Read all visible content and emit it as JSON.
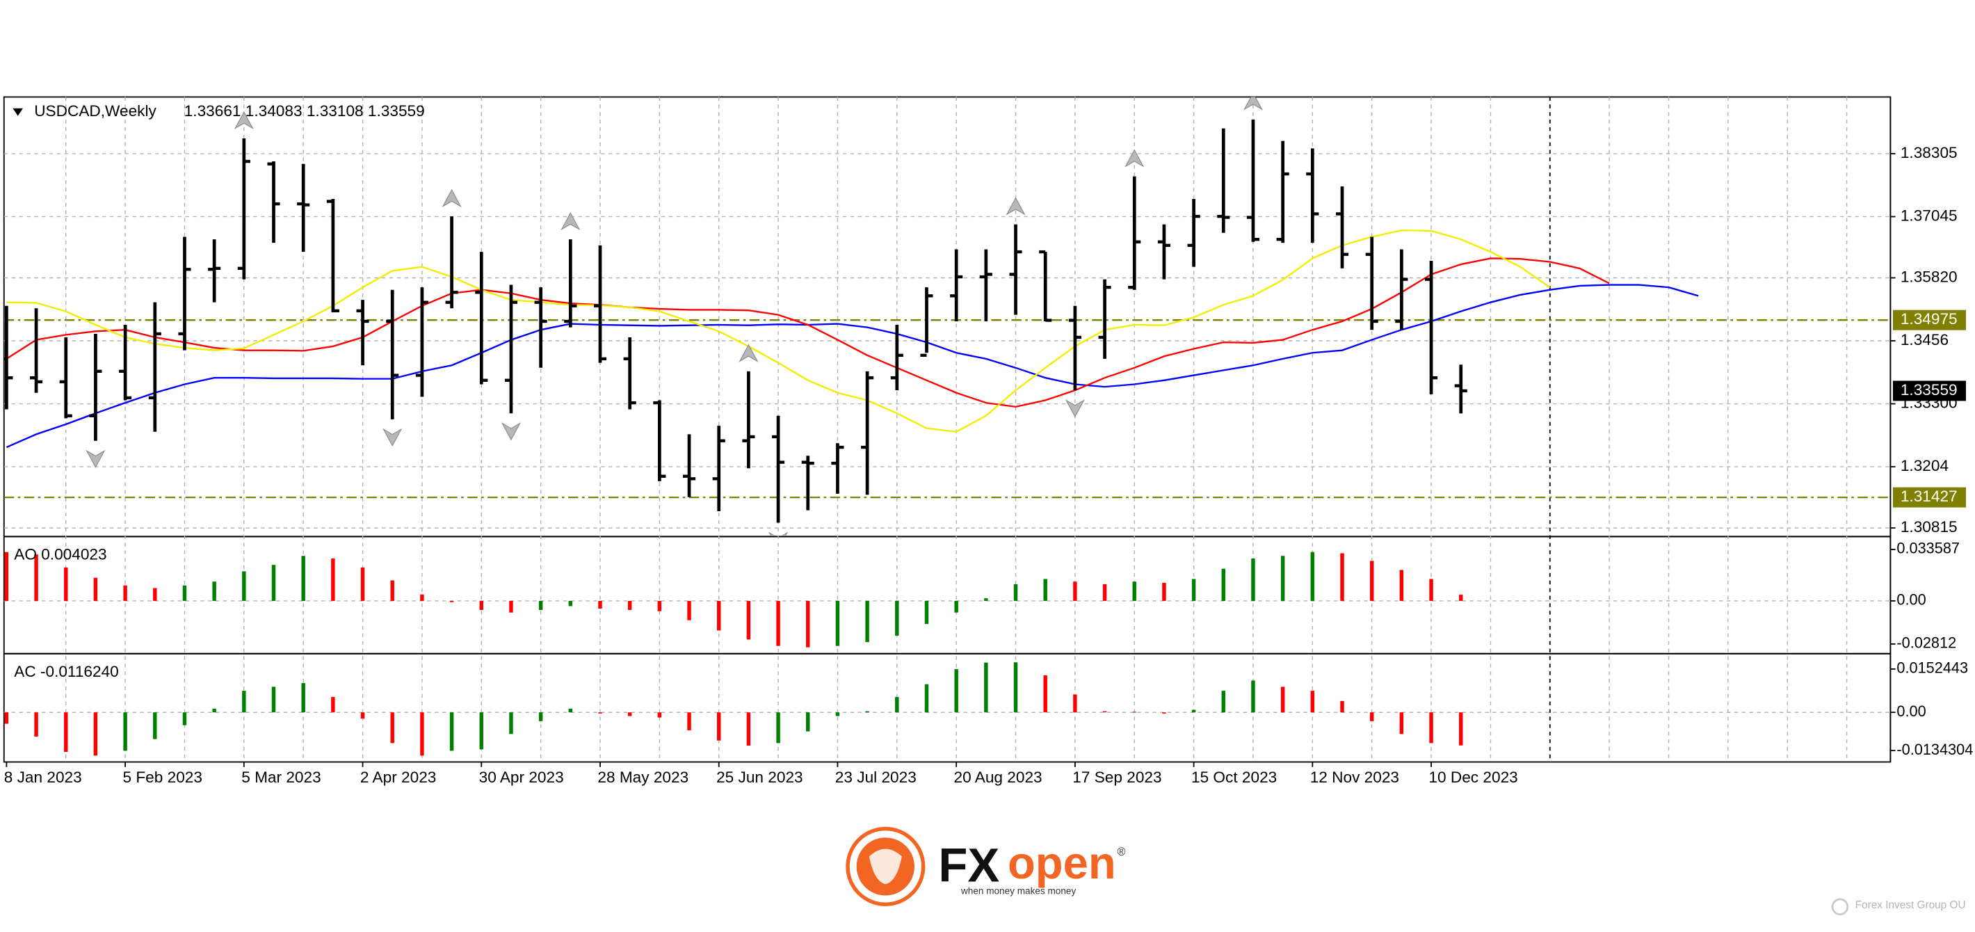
{
  "chart_data": {
    "type": "ohlc",
    "symbol": "USDCAD,Weekly",
    "ohlc_text": "1.33661 1.34083 1.33108 1.33559",
    "categories": [
      "8 Jan 2023",
      null,
      null,
      null,
      "5 Feb 2023",
      null,
      null,
      null,
      "5 Mar 2023",
      null,
      null,
      null,
      "2 Apr 2023",
      null,
      null,
      null,
      "30 Apr 2023",
      null,
      null,
      null,
      "28 May 2023",
      null,
      null,
      null,
      "25 Jun 2023",
      null,
      null,
      null,
      "23 Jul 2023",
      null,
      null,
      null,
      "20 Aug 2023",
      null,
      null,
      null,
      "17 Sep 2023",
      null,
      null,
      null,
      "15 Oct 2023",
      null,
      null,
      null,
      "12 Nov 2023",
      null,
      null,
      null,
      "10 Dec 2023",
      null,
      null,
      null,
      null,
      null,
      null,
      null,
      null,
      null
    ],
    "open": [
      1.342,
      1.3382,
      1.3374,
      1.3306,
      1.3395,
      1.3342,
      1.347,
      1.3599,
      1.3601,
      1.381,
      1.373,
      1.3735,
      1.3516,
      1.3495,
      1.3387,
      1.3533,
      1.3553,
      1.3377,
      1.3533,
      1.3495,
      1.3526,
      1.342,
      1.3332,
      1.3185,
      1.318,
      1.3256,
      1.3264,
      1.3213,
      1.3211,
      1.3243,
      1.3382,
      1.3427,
      1.3546,
      1.3584,
      1.3589,
      1.3634,
      1.3497,
      1.3463,
      1.3563,
      1.3654,
      1.3647,
      1.3705,
      1.3703,
      1.3659,
      1.379,
      1.371,
      1.3629,
      1.3495,
      1.3579,
      1.33661,
      null,
      null,
      null,
      null,
      null,
      null,
      null,
      null
    ],
    "high": [
      1.3526,
      1.3521,
      1.3463,
      1.347,
      1.3488,
      1.3533,
      1.3664,
      1.3659,
      1.3861,
      1.3815,
      1.381,
      1.374,
      1.3538,
      1.3558,
      1.3563,
      1.3705,
      1.3634,
      1.3568,
      1.3563,
      1.3659,
      1.3647,
      1.3463,
      1.3337,
      1.3269,
      1.3286,
      1.3395,
      1.3306,
      1.3226,
      1.3251,
      1.3395,
      1.3488,
      1.3563,
      1.3639,
      1.3639,
      1.3689,
      1.3634,
      1.3526,
      1.3579,
      1.3785,
      1.3689,
      1.374,
      1.3881,
      1.3899,
      1.3856,
      1.3841,
      1.3765,
      1.3664,
      1.3639,
      1.3616,
      1.34083,
      null,
      null,
      null,
      null,
      null,
      null,
      null,
      null
    ],
    "low": [
      1.3319,
      1.3352,
      1.3301,
      1.3256,
      1.3337,
      1.3274,
      1.3437,
      1.3533,
      1.3579,
      1.3652,
      1.3634,
      1.3513,
      1.3407,
      1.3299,
      1.3344,
      1.3521,
      1.3369,
      1.3311,
      1.3402,
      1.3483,
      1.3412,
      1.3319,
      1.3175,
      1.3143,
      1.3115,
      1.3201,
      1.3092,
      1.3117,
      1.315,
      1.3148,
      1.3357,
      1.3432,
      1.3495,
      1.3495,
      1.3508,
      1.3495,
      1.3357,
      1.342,
      1.3558,
      1.3579,
      1.3604,
      1.3672,
      1.3654,
      1.3652,
      1.3652,
      1.3601,
      1.3478,
      1.3478,
      1.3349,
      1.33108,
      null,
      null,
      null,
      null,
      null,
      null,
      null,
      null
    ],
    "close": [
      1.3382,
      1.3374,
      1.3306,
      1.3395,
      1.3342,
      1.347,
      1.3599,
      1.3601,
      1.3815,
      1.373,
      1.3728,
      1.3516,
      1.3495,
      1.3387,
      1.3533,
      1.3553,
      1.3377,
      1.3533,
      1.3495,
      1.3526,
      1.342,
      1.3332,
      1.3185,
      1.318,
      1.3256,
      1.3264,
      1.3213,
      1.3211,
      1.3243,
      1.3382,
      1.3427,
      1.3546,
      1.3584,
      1.3589,
      1.3634,
      1.3497,
      1.3463,
      1.3563,
      1.3654,
      1.3647,
      1.3705,
      1.3703,
      1.3659,
      1.379,
      1.371,
      1.3629,
      1.3495,
      1.3579,
      1.3382,
      1.33559,
      null,
      null,
      null,
      null,
      null,
      null,
      null,
      null
    ],
    "bar_color": "#000000",
    "lines": [
      {
        "color": "#0000ff",
        "values": [
          1.3243,
          1.3269,
          1.3289,
          1.3311,
          1.3332,
          1.3352,
          1.3369,
          1.3382,
          1.3382,
          1.3381,
          1.3381,
          1.3381,
          1.338,
          1.338,
          1.3395,
          1.3407,
          1.3432,
          1.3458,
          1.3478,
          1.349,
          1.3488,
          1.3487,
          1.3486,
          1.3487,
          1.3488,
          1.3487,
          1.3489,
          1.3488,
          1.349,
          1.3483,
          1.347,
          1.3453,
          1.3432,
          1.342,
          1.3402,
          1.3382,
          1.3369,
          1.3364,
          1.3369,
          1.3377,
          1.3387,
          1.3397,
          1.3407,
          1.342,
          1.3432,
          1.3437,
          1.3458,
          1.3478,
          1.3495,
          1.3515,
          1.3533,
          1.3548,
          1.3558,
          1.3566,
          1.3568,
          1.3568,
          1.3563,
          1.3546
        ]
      },
      {
        "color": "#ff0000",
        "values": [
          1.342,
          1.3458,
          1.3468,
          1.3475,
          1.3478,
          1.3463,
          1.3453,
          1.3442,
          1.3437,
          1.3437,
          1.3436,
          1.3445,
          1.3463,
          1.3495,
          1.3526,
          1.3551,
          1.3558,
          1.3551,
          1.3538,
          1.3531,
          1.3528,
          1.3523,
          1.352,
          1.3518,
          1.3518,
          1.3517,
          1.3508,
          1.3488,
          1.3458,
          1.3427,
          1.3402,
          1.3377,
          1.3352,
          1.3332,
          1.3324,
          1.3337,
          1.3357,
          1.3382,
          1.3402,
          1.3425,
          1.344,
          1.3453,
          1.3452,
          1.3458,
          1.3478,
          1.3495,
          1.352,
          1.3553,
          1.3589,
          1.3609,
          1.3621,
          1.362,
          1.3614,
          1.3601,
          1.3571,
          null,
          null,
          null
        ]
      },
      {
        "color": "#f2ee00",
        "values": [
          1.3533,
          1.3532,
          1.3515,
          1.3488,
          1.3463,
          1.345,
          1.3442,
          1.3437,
          1.3441,
          1.3468,
          1.3495,
          1.3526,
          1.3563,
          1.3596,
          1.3604,
          1.3584,
          1.3558,
          1.3538,
          1.3533,
          1.3528,
          1.3527,
          1.3523,
          1.3515,
          1.3495,
          1.3475,
          1.3445,
          1.3412,
          1.3377,
          1.3352,
          1.3337,
          1.3311,
          1.3281,
          1.3274,
          1.3306,
          1.3357,
          1.3402,
          1.3445,
          1.3478,
          1.3488,
          1.3487,
          1.3503,
          1.3528,
          1.3546,
          1.3578,
          1.3621,
          1.3647,
          1.3664,
          1.3677,
          1.3676,
          1.3659,
          1.3634,
          1.3604,
          1.3563,
          null,
          null,
          null,
          null,
          null
        ]
      }
    ],
    "fractals_up": [
      8,
      15,
      19,
      25,
      34,
      38,
      42
    ],
    "fractals_down": [
      3,
      13,
      17,
      26,
      36
    ],
    "levels": [
      {
        "value": 1.34975,
        "color": "#808000"
      },
      {
        "value": 1.31427,
        "color": "#808000"
      }
    ],
    "ylim": [
      1.30669,
      1.39439
    ],
    "yticks": [
      1.38305,
      1.37045,
      {
        "value": 1.3582,
        "label": "1.35820"
      },
      1.3456,
      {
        "value": 1.333,
        "label": "1.33300"
      },
      1.3204,
      1.30815
    ],
    "grid": true,
    "indicators": [
      {
        "type": "histogram",
        "label": "AO 0.004023",
        "up_color": "#008000",
        "down_color": "#ff0000",
        "values": [
          0.0319,
          0.0303,
          0.0218,
          0.0151,
          0.0101,
          0.0084,
          0.0101,
          0.0126,
          0.0193,
          0.0235,
          0.0294,
          0.0277,
          0.0218,
          0.0134,
          0.0042,
          -0.0008,
          -0.0059,
          -0.0076,
          -0.0059,
          -0.0034,
          -0.005,
          -0.0059,
          -0.0067,
          -0.0126,
          -0.0193,
          -0.0252,
          -0.0294,
          -0.0303,
          -0.0294,
          -0.0269,
          -0.0227,
          -0.0151,
          -0.0076,
          0.0017,
          0.0109,
          0.0143,
          0.0126,
          0.0109,
          0.0126,
          0.0118,
          0.0143,
          0.021,
          0.0277,
          0.0294,
          0.0319,
          0.0311,
          0.0261,
          0.0202,
          0.0143,
          0.004023,
          null,
          null,
          null,
          null,
          null,
          null,
          null,
          null
        ],
        "ylim": [
          -0.0328,
          0.0412
        ],
        "yticks": [
          0.033587,
          {
            "value": 0,
            "label": "0.00"
          },
          -0.02812
        ]
      },
      {
        "type": "histogram",
        "label": "AC -0.0116240",
        "up_color": "#008000",
        "down_color": "#ff0000",
        "values": [
          -0.004,
          -0.0085,
          -0.0139,
          -0.0152,
          -0.0135,
          -0.0094,
          -0.0045,
          0.0013,
          0.0076,
          0.009,
          0.0103,
          0.0054,
          -0.0022,
          -0.0108,
          -0.0152,
          -0.0135,
          -0.013,
          -0.0076,
          -0.0031,
          0.0013,
          -0.0004,
          -0.0013,
          -0.0018,
          -0.0063,
          -0.0099,
          -0.0117,
          -0.0108,
          -0.0067,
          -0.0013,
          0.0004,
          0.0054,
          0.0099,
          0.0152,
          0.0175,
          0.0176,
          0.013,
          0.0063,
          0.0004,
          0.0002,
          -0.0004,
          0.0009,
          0.0076,
          0.0112,
          0.009,
          0.0076,
          0.004,
          -0.0031,
          -0.0076,
          -0.0108,
          -0.011624,
          null,
          null,
          null,
          null,
          null,
          null,
          null,
          null
        ],
        "ylim": [
          -0.017,
          0.0202
        ],
        "yticks": [
          0.0152443,
          {
            "value": 0,
            "label": "0.00"
          },
          -0.0134304
        ]
      }
    ]
  },
  "branding": {
    "fx": "FX",
    "open": "open",
    "registered": "®",
    "tagline": "when money makes money",
    "watermark": "Forex Invest Group OU"
  }
}
